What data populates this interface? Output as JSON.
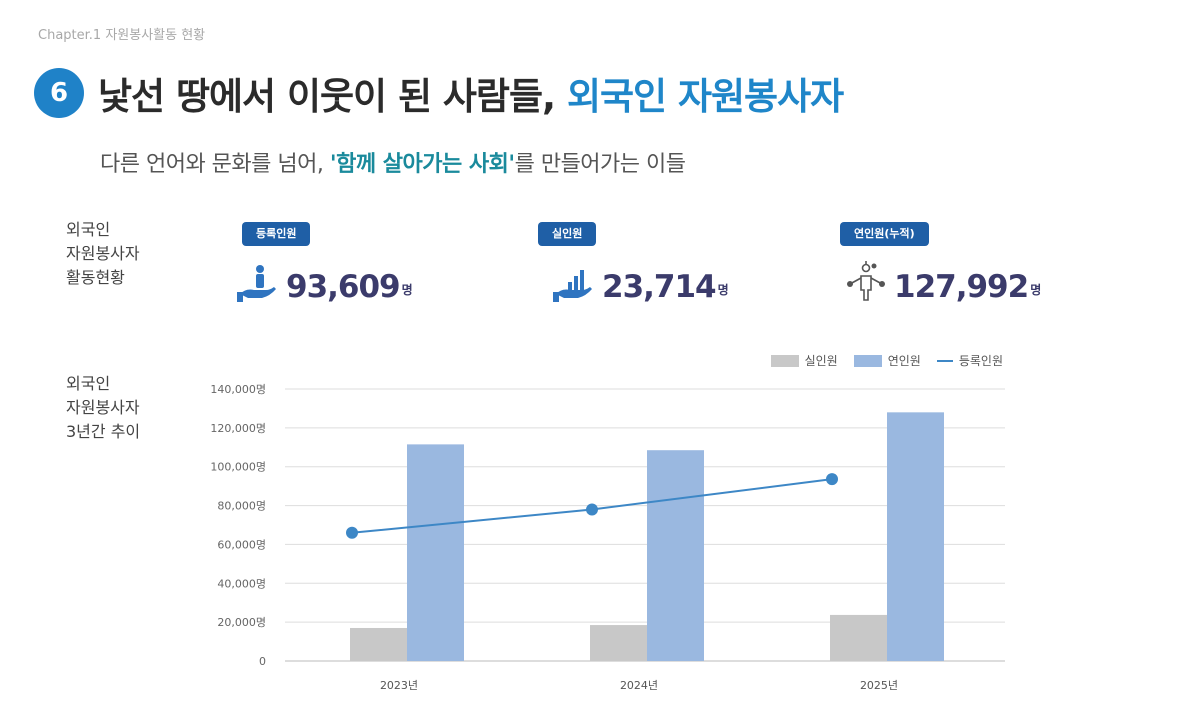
{
  "chapter": "Chapter.1 자원봉사활동 현황",
  "badge_number": "6",
  "title_main": "낯선 땅에서 이웃이 된 사람들, ",
  "title_accent": "외국인 자원봉사자",
  "subtitle_prefix": "다른 언어와 문화를 넘어, ",
  "subtitle_accent": "'함께 살아가는 사회'",
  "subtitle_suffix": "를 만들어가는 이들",
  "section1_label": "외국인\n자원봉사자\n활동현황",
  "section2_label": "외국인\n자원봉사자\n3년간 추이",
  "stats": [
    {
      "label": "등록인원",
      "value": "93,609",
      "unit": "명",
      "icon": "hand-person-icon"
    },
    {
      "label": "실인원",
      "value": "23,714",
      "unit": "명",
      "icon": "hand-bar-chart-icon"
    },
    {
      "label": "연인원(누적)",
      "value": "127,992",
      "unit": "명",
      "icon": "network-person-icon"
    }
  ],
  "colors": {
    "accent_blue": "#1f86c9",
    "pill_blue": "#1f5fa6",
    "bar_gray": "#c8c8c8",
    "bar_blue": "#9ab8e0",
    "line_blue": "#3d87c6"
  },
  "chart_data": {
    "type": "bar",
    "categories": [
      "2023년",
      "2024년",
      "2025년"
    ],
    "series": [
      {
        "name": "실인원",
        "type": "bar",
        "values": [
          17000,
          18500,
          23714
        ]
      },
      {
        "name": "연인원",
        "type": "bar",
        "values": [
          111500,
          108500,
          127992
        ]
      },
      {
        "name": "등록인원",
        "type": "line",
        "values": [
          66000,
          78000,
          93609
        ]
      }
    ],
    "y_ticks": [
      "0",
      "20,000명",
      "40,000명",
      "60,000명",
      "80,000명",
      "100,000명",
      "120,000명",
      "140,000명"
    ],
    "ylim": [
      0,
      140000
    ],
    "grid": true,
    "legend_position": "top-right"
  }
}
